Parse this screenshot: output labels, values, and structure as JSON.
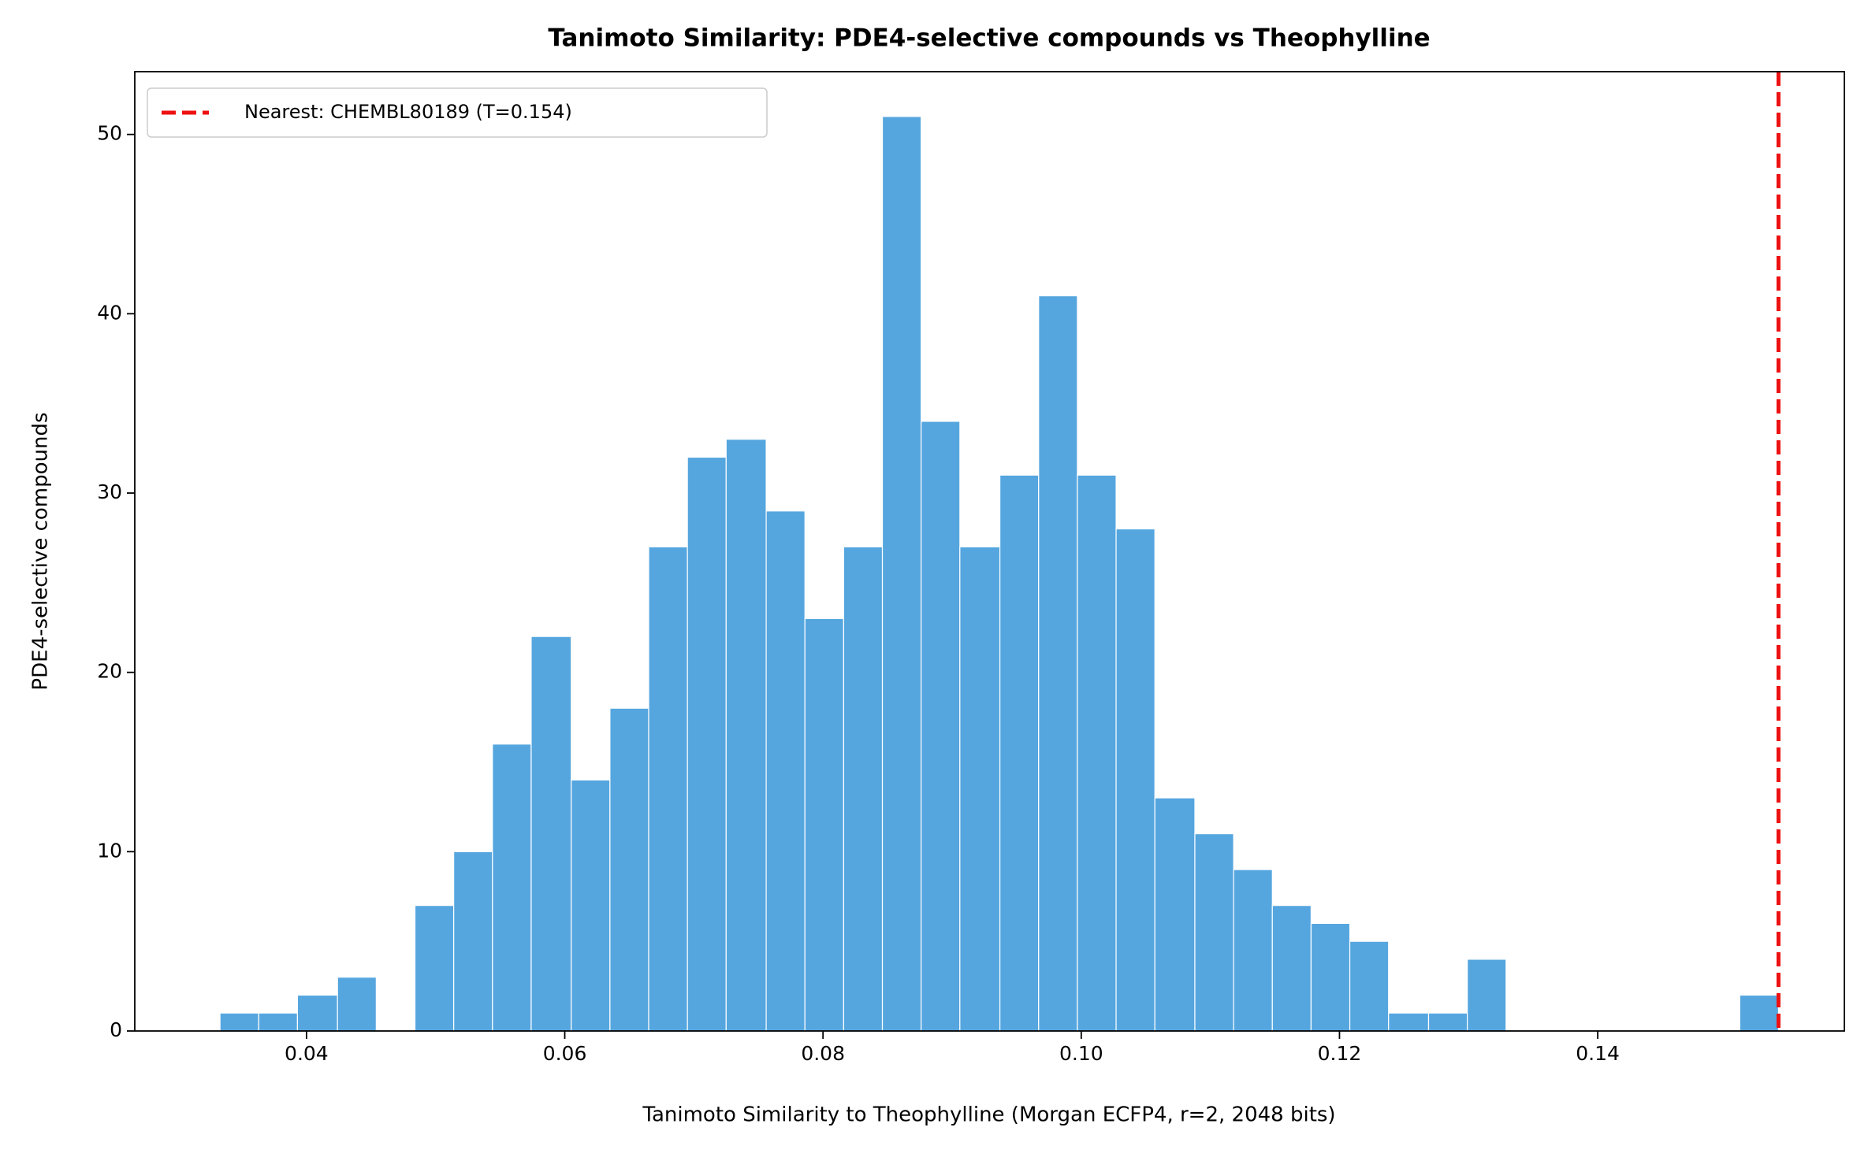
{
  "chart_data": {
    "type": "histogram",
    "title": "Tanimoto Similarity: PDE4-selective compounds vs Theophylline",
    "x_label": "Tanimoto Similarity to Theophylline (Morgan ECFP4, r=2, 2048 bits)",
    "y_label": "PDE4-selective compounds",
    "bins": [
      0.0333,
      0.0363,
      0.0393,
      0.0424,
      0.0454,
      0.0484,
      0.0514,
      0.0544,
      0.0574,
      0.0605,
      0.0635,
      0.0665,
      0.0695,
      0.0725,
      0.0756,
      0.0786,
      0.0816,
      0.0846,
      0.0876,
      0.0906,
      0.0937,
      0.0967,
      0.0997,
      0.1027,
      0.1057,
      0.1088,
      0.1118,
      0.1148,
      0.1178,
      0.1208,
      0.1238,
      0.1269,
      0.1299,
      0.1329,
      0.1359,
      0.1389,
      0.142,
      0.145,
      0.148,
      0.151,
      0.154
    ],
    "values": [
      1,
      1,
      2,
      3,
      0,
      7,
      10,
      16,
      22,
      14,
      18,
      27,
      32,
      33,
      29,
      23,
      27,
      51,
      34,
      27,
      31,
      41,
      31,
      28,
      13,
      11,
      9,
      7,
      6,
      5,
      1,
      1,
      4,
      0,
      0,
      0,
      0,
      0,
      0,
      2
    ],
    "color": "#55a6df",
    "reference_line": {
      "x": 0.154,
      "label": "Nearest: CHEMBL80189 (T=0.154)",
      "color": "#ee1111"
    },
    "legend": "upper left",
    "xlim": [
      0.0267,
      0.1591
    ],
    "xticks": [
      {
        "value": 0.04,
        "label": "0.04"
      },
      {
        "value": 0.06,
        "label": "0.06"
      },
      {
        "value": 0.08,
        "label": "0.08"
      },
      {
        "value": 0.1,
        "label": "0.10"
      },
      {
        "value": 0.12,
        "label": "0.12"
      },
      {
        "value": 0.14,
        "label": "0.14"
      }
    ],
    "ylim": [
      0,
      53.5
    ],
    "yticks": [
      0,
      10,
      20,
      30,
      40,
      50
    ]
  }
}
